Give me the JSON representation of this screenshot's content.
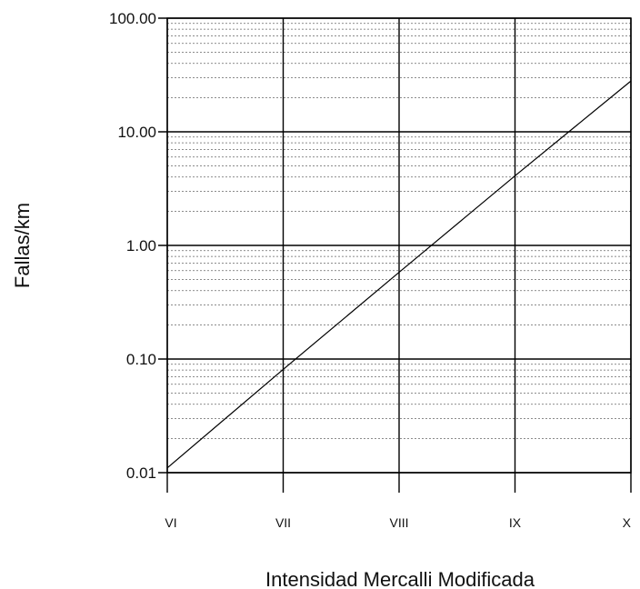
{
  "chart_data": {
    "type": "line",
    "title": "",
    "xlabel": "Intensidad Mercalli Modificada",
    "ylabel": "Fallas/km",
    "y_scale": "log",
    "ylim": [
      0.01,
      100
    ],
    "y_ticks": [
      "0.01",
      "0.10",
      "1.00",
      "10.00",
      "100.00"
    ],
    "categories": [
      "VI",
      "VII",
      "VIII",
      "IX",
      "X"
    ],
    "grid": true,
    "series": [
      {
        "values": [
          0.011,
          0.081,
          0.58,
          4.1,
          28
        ]
      }
    ]
  }
}
